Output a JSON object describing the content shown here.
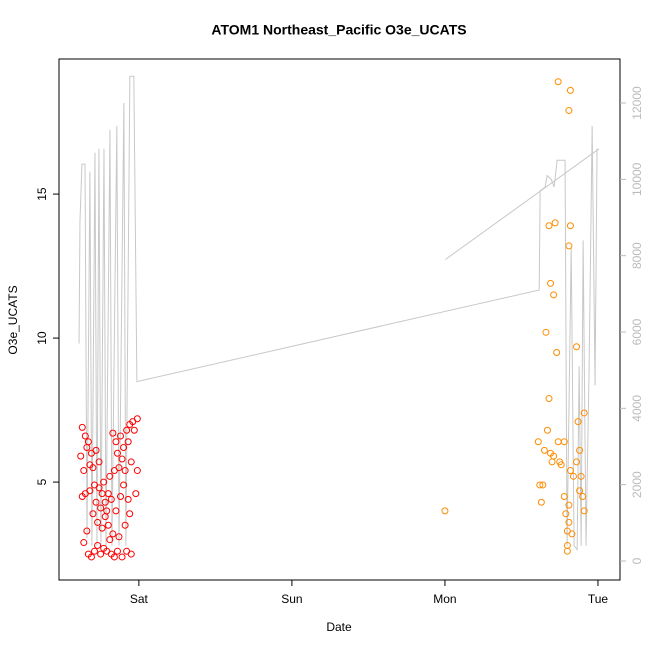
{
  "chart_data": {
    "type": "scatter",
    "title": "ATOM1 Northeast_Pacific O3e_UCATS",
    "x_label": "Date",
    "y_label": "O3e_UCATS",
    "xlim": [
      0.478,
      4.144
    ],
    "xticks": [
      {
        "value": 1,
        "label": "Sat"
      },
      {
        "value": 2,
        "label": "Sun"
      },
      {
        "value": 3,
        "label": "Mon"
      },
      {
        "value": 4,
        "label": "Tue"
      }
    ],
    "ylim": [
      1.6,
      19.69
    ],
    "yticks": [
      5,
      10,
      15
    ],
    "y2lim": [
      -498,
      13153
    ],
    "y2ticks": [
      0,
      2000,
      4000,
      6000,
      8000,
      10000,
      12000
    ],
    "series": [
      {
        "type": "line",
        "axis": "y2",
        "color": "#c8c8c8",
        "x": [
          0.609,
          0.615,
          0.628,
          0.648,
          0.661,
          0.68,
          0.693,
          0.713,
          0.726,
          0.739,
          0.752,
          0.772,
          0.785,
          0.811,
          0.824,
          0.856,
          0.87,
          0.902,
          0.915,
          0.941,
          0.967,
          0.987,
          3.616,
          3.622,
          3.655,
          3.668,
          3.694,
          3.714,
          3.733,
          3.785,
          3.798,
          3.825,
          3.844,
          3.864,
          3.877,
          3.89,
          3.903,
          3.922,
          3.942,
          3.962,
          3.981,
          3.994,
          null,
          3.003,
          4.007
        ],
        "values": [
          5700,
          8900,
          10400,
          10400,
          600,
          10200,
          400,
          10700,
          400,
          10800,
          400,
          10800,
          400,
          11300,
          400,
          11400,
          400,
          12000,
          400,
          12700,
          12700,
          4700,
          7100,
          9700,
          9800,
          10100,
          10000,
          9800,
          10500,
          10500,
          400,
          8200,
          400,
          300,
          5100,
          400,
          8400,
          400,
          5000,
          11400,
          4600,
          10800,
          null,
          7900,
          10800
        ]
      },
      {
        "type": "scatter",
        "color": "#ff0000",
        "x": [
          0.62,
          0.63,
          0.63,
          0.64,
          0.64,
          0.65,
          0.65,
          0.66,
          0.66,
          0.67,
          0.67,
          0.68,
          0.68,
          0.69,
          0.69,
          0.7,
          0.7,
          0.71,
          0.71,
          0.72,
          0.72,
          0.73,
          0.73,
          0.74,
          0.74,
          0.75,
          0.75,
          0.76,
          0.76,
          0.77,
          0.77,
          0.78,
          0.78,
          0.79,
          0.79,
          0.8,
          0.8,
          0.81,
          0.81,
          0.82,
          0.82,
          0.83,
          0.83,
          0.84,
          0.84,
          0.85,
          0.85,
          0.86,
          0.86,
          0.87,
          0.87,
          0.88,
          0.88,
          0.89,
          0.89,
          0.9,
          0.9,
          0.91,
          0.91,
          0.92,
          0.92,
          0.93,
          0.93,
          0.94,
          0.94,
          0.95,
          0.95,
          0.96,
          0.97,
          0.98,
          0.99,
          0.99
        ],
        "values": [
          5.9,
          4.5,
          6.9,
          5.4,
          2.9,
          6.6,
          4.6,
          6.2,
          3.3,
          6.4,
          2.5,
          4.7,
          5.6,
          6.0,
          2.4,
          5.5,
          3.9,
          4.9,
          2.6,
          4.3,
          6.1,
          3.6,
          2.8,
          4.8,
          5.7,
          4.1,
          2.5,
          3.4,
          4.6,
          5.0,
          2.7,
          3.8,
          4.3,
          4.0,
          2.6,
          4.6,
          3.5,
          5.2,
          3.0,
          4.4,
          2.5,
          6.7,
          3.2,
          5.4,
          2.4,
          6.4,
          4.0,
          6.0,
          2.6,
          5.5,
          3.1,
          4.5,
          6.6,
          5.8,
          2.4,
          4.9,
          6.2,
          3.5,
          5.4,
          6.8,
          2.6,
          4.4,
          6.4,
          7.0,
          3.9,
          5.7,
          2.5,
          7.1,
          6.8,
          4.6,
          7.2,
          5.4
        ]
      },
      {
        "type": "scatter",
        "color": "#ff8c00",
        "x": [
          3.61,
          3.62,
          3.63,
          3.64,
          3.65,
          3.66,
          3.67,
          3.68,
          3.68,
          3.69,
          3.7,
          3.71,
          3.72,
          3.73,
          3.74,
          3.74,
          3.75,
          3.78,
          3.79,
          3.8,
          3.8,
          3.81,
          3.81,
          3.81,
          3.82,
          3.82,
          3.83,
          3.84,
          3.86,
          3.86,
          3.87,
          3.88,
          3.89,
          3.9,
          3.91,
          3.91,
          3.88,
          3.8,
          3.81,
          3.82,
          3.0,
          3.69,
          3.71,
          3.76,
          3.78
        ],
        "values": [
          6.4,
          4.9,
          4.3,
          4.9,
          6.1,
          10.2,
          6.8,
          7.9,
          13.9,
          11.9,
          5.7,
          11.5,
          14.0,
          9.5,
          18.9,
          6.4,
          5.7,
          4.5,
          3.9,
          3.3,
          2.8,
          3.6,
          13.2,
          17.9,
          18.6,
          13.9,
          3.2,
          5.2,
          9.7,
          5.7,
          7.1,
          6.1,
          5.2,
          4.5,
          7.4,
          4.0,
          4.7,
          2.6,
          4.2,
          5.4,
          4.0,
          6.0,
          5.9,
          5.6,
          6.4
        ]
      }
    ]
  }
}
